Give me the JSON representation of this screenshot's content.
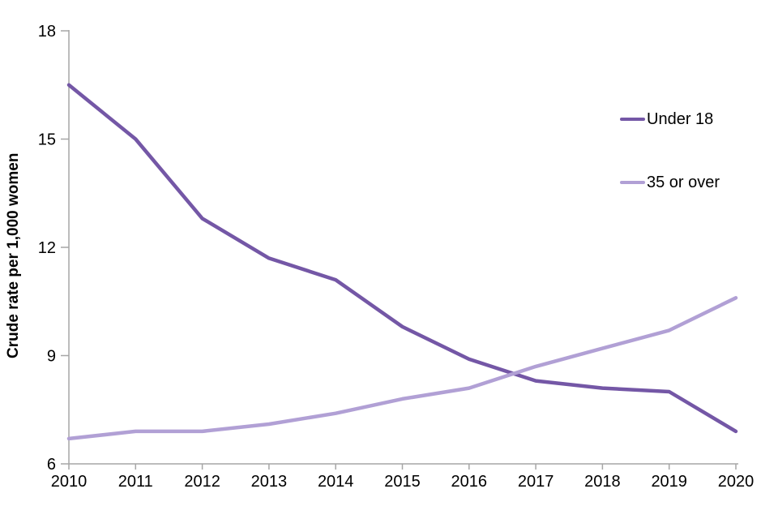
{
  "chart_data": {
    "type": "line",
    "title": "",
    "xlabel": "",
    "ylabel": "Crude rate per 1,000 women",
    "x": [
      "2010",
      "2011",
      "2012",
      "2013",
      "2014",
      "2015",
      "2016",
      "2017",
      "2018",
      "2019",
      "2020"
    ],
    "series": [
      {
        "name": "Under 18",
        "color": "#7457A6",
        "values": [
          16.5,
          15.0,
          12.8,
          11.7,
          11.1,
          9.8,
          8.9,
          8.3,
          8.1,
          8.0,
          6.9
        ]
      },
      {
        "name": "35 or over",
        "color": "#B1A0D5",
        "values": [
          6.7,
          6.9,
          6.9,
          7.1,
          7.4,
          7.8,
          8.1,
          8.7,
          9.2,
          9.7,
          10.6
        ]
      }
    ],
    "ylim": [
      6,
      18
    ],
    "yticks": [
      6,
      9,
      12,
      15,
      18
    ],
    "grid": false,
    "legend_position": "upper-right",
    "axis_color": "#A6A6A6",
    "text_color": "#000000",
    "line_width": 4.5
  }
}
